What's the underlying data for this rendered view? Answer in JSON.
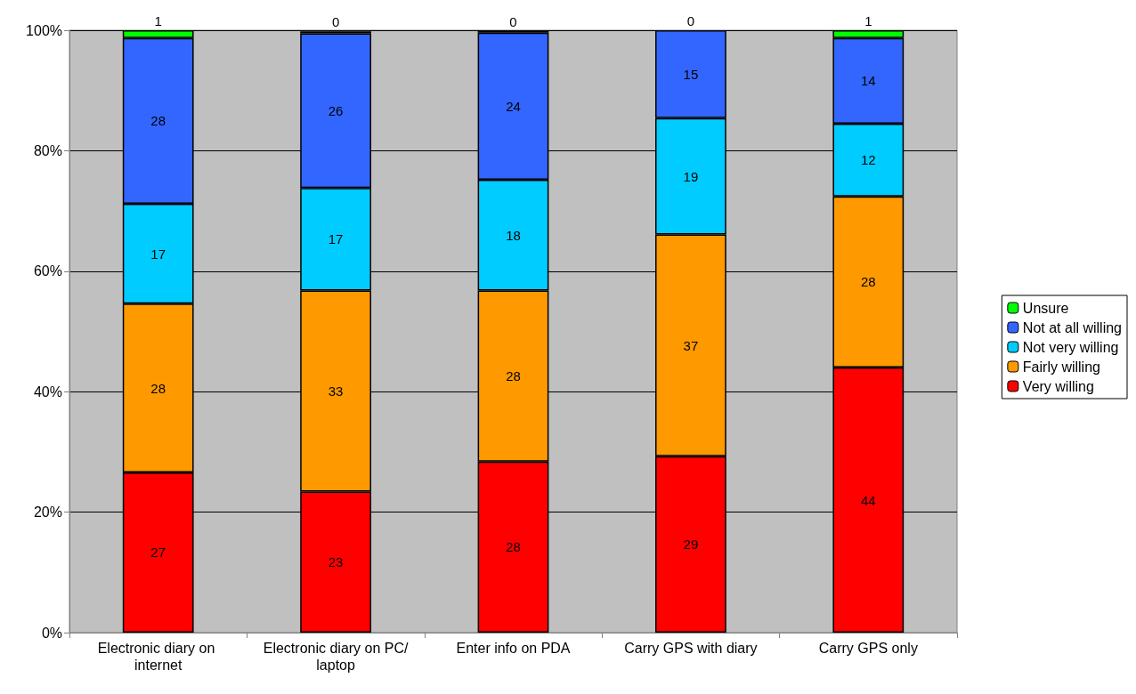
{
  "chart_data": {
    "type": "bar",
    "stacked": true,
    "categories": [
      "Electronic diary on internet",
      "Electronic diary on PC/laptop",
      "Enter info on PDA",
      "Carry GPS with diary",
      "Carry GPS only"
    ],
    "series": [
      {
        "name": "Very willing",
        "color": "#ff0000",
        "values": [
          26.6,
          23.4,
          28.4,
          29.3,
          44.0
        ],
        "value_labels": [
          "27",
          "23",
          "28",
          "29",
          "44"
        ]
      },
      {
        "name": "Fairly willing",
        "color": "#ff9900",
        "values": [
          28.0,
          33.4,
          28.4,
          36.8,
          28.4
        ],
        "value_labels": [
          "28",
          "33",
          "28",
          "37",
          "28"
        ]
      },
      {
        "name": "Not very willing",
        "color": "#00ccff",
        "values": [
          16.6,
          17.0,
          18.4,
          19.3,
          12.1
        ],
        "value_labels": [
          "17",
          "17",
          "18",
          "19",
          "12"
        ]
      },
      {
        "name": "Not at all willing",
        "color": "#3366ff",
        "values": [
          27.5,
          25.7,
          24.4,
          14.6,
          14.2
        ],
        "value_labels": [
          "28",
          "26",
          "24",
          "15",
          "14"
        ]
      },
      {
        "name": "Unsure",
        "color": "#00ff00",
        "values": [
          1.3,
          0.3,
          0.3,
          0,
          1.3
        ],
        "value_labels": [
          "1",
          "0",
          "0",
          "0",
          "1"
        ]
      }
    ],
    "ylim": [
      0,
      100
    ],
    "yticks": [
      {
        "value": 0,
        "label": "0%"
      },
      {
        "value": 20,
        "label": "20%"
      },
      {
        "value": 40,
        "label": "40%"
      },
      {
        "value": 60,
        "label": "60%"
      },
      {
        "value": 80,
        "label": "80%"
      },
      {
        "value": 100,
        "label": "100%"
      }
    ],
    "grid": "y",
    "legend": "right"
  }
}
